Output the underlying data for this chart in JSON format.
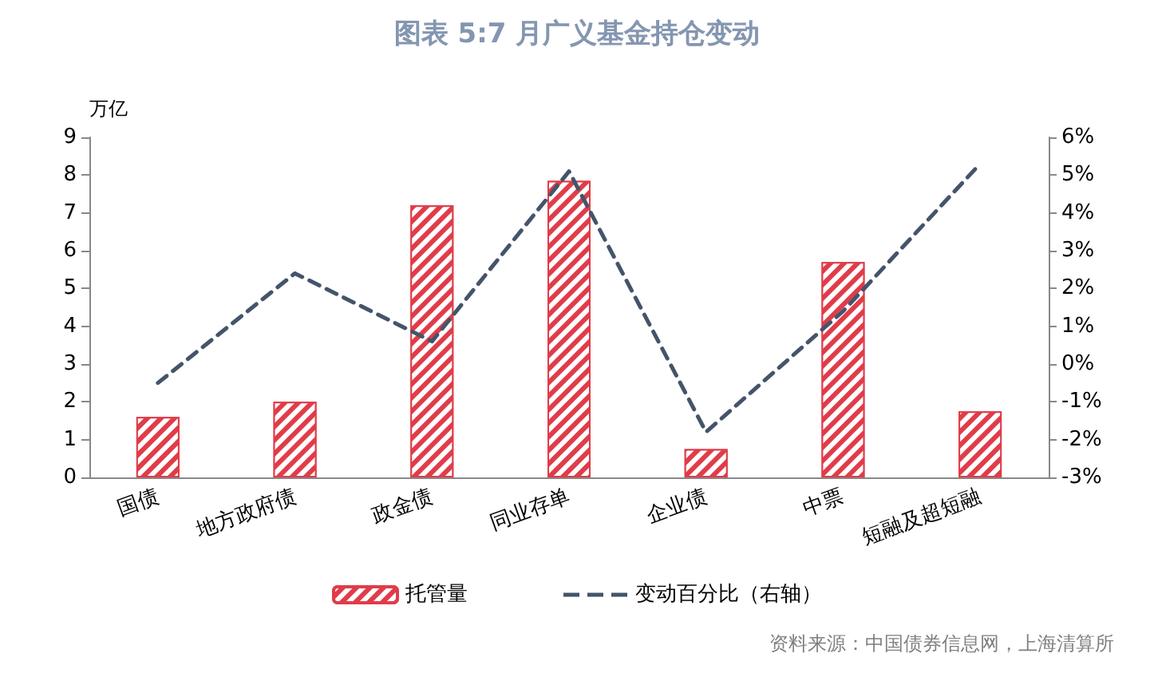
{
  "chart_data": {
    "type": "bar",
    "title": "图表 5:7 月广义基金持仓变动",
    "ylabel": "万亿",
    "categories": [
      "国债",
      "地方政府债",
      "政金债",
      "同业存单",
      "企业债",
      "中票",
      "短融及超短融"
    ],
    "series": [
      {
        "name": "托管量",
        "color": "#e03c4a",
        "values": [
          1.6,
          2.0,
          7.2,
          7.85,
          0.75,
          5.7,
          1.75
        ]
      },
      {
        "name": "变动百分比（右轴）",
        "type": "line",
        "axis": "y2",
        "color": "#44546a",
        "line_style": "dashed",
        "marker": "none",
        "values": [
          -0.5,
          2.4,
          0.6,
          5.1,
          -1.8,
          1.4,
          5.3
        ]
      }
    ],
    "ylim": [
      0,
      9
    ],
    "yticks": [
      0,
      1,
      2,
      3,
      4,
      5,
      6,
      7,
      8,
      9
    ],
    "y2lim": [
      -3,
      6
    ],
    "y2ticks": [
      {
        "value": -3,
        "label": "-3%"
      },
      {
        "value": -2,
        "label": "-2%"
      },
      {
        "value": -1,
        "label": "-1%"
      },
      {
        "value": 0,
        "label": "0%"
      },
      {
        "value": 1,
        "label": "1%"
      },
      {
        "value": 2,
        "label": "2%"
      },
      {
        "value": 3,
        "label": "3%"
      },
      {
        "value": 4,
        "label": "4%"
      },
      {
        "value": 5,
        "label": "5%"
      },
      {
        "value": 6,
        "label": "6%"
      }
    ],
    "grid": false,
    "legend": "bottom",
    "annotations": [
      "资料来源：中国债券信息网，上海清算所"
    ]
  }
}
